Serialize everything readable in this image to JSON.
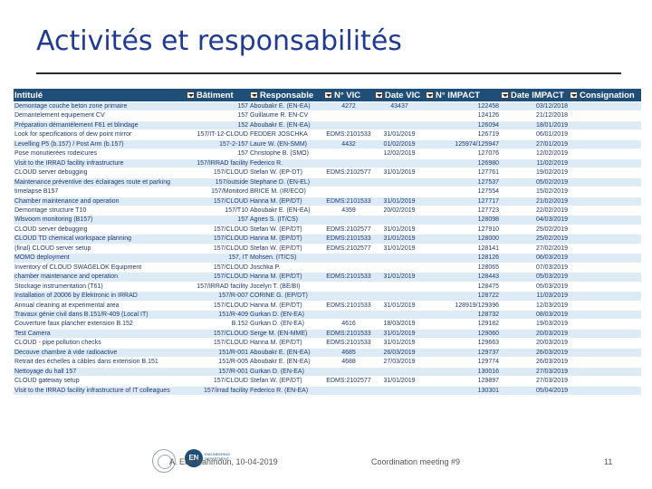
{
  "title": "Activités et responsabilités",
  "columns": [
    "Intitulé",
    "Bâtiment",
    "Responsable",
    "N° VIC",
    "Date VIC",
    "N° IMPACT",
    "Date IMPACT",
    "Consignation"
  ],
  "rows": [
    [
      "Demontage couche beton zone primaire",
      "157",
      "Aboubakr E. (EN-EA)",
      "4272",
      "43437",
      "122458",
      "03/12/2018",
      ""
    ],
    [
      "Demantelement equipement CV",
      "157",
      "Guillaume R. EN-CV",
      "",
      "",
      "124126",
      "21/12/2018",
      ""
    ],
    [
      "Préparation démantèlement F61 et blindage",
      "152",
      "Aboubakr E. (EN-EA)",
      "",
      "",
      "126094",
      "18/01/2019",
      ""
    ],
    [
      "Look for specifications of dew point mirror",
      "157/IT-12-CLOUD",
      "FEDDER JOSCHKA",
      "EDMS:2101533",
      "31/01/2019",
      "126719",
      "06/01/2019",
      ""
    ],
    [
      "Levelling P5 (b.157) / Post Arm (b.157)",
      "157-2-157",
      "Laure W. (EN-SMM)",
      "4432",
      "01/02/2019",
      "125974/125947",
      "27/01/2019",
      ""
    ],
    [
      "Pose monutierées rodeicures",
      "157",
      "Christophe B. (SMO)",
      "",
      "12/02/2019",
      "127076",
      "12/02/2019",
      ""
    ],
    [
      "Visit to the IRRAD facility infrastructure",
      "157/IRRAD facility",
      "Federico R.",
      "",
      "",
      "126980",
      "11/02/2019",
      ""
    ],
    [
      "CLOUD server debugging",
      "157/CLOUD",
      "Stefan W. (EP-DT)",
      "EDMS:2102577",
      "31/01/2019",
      "127761",
      "19/02/2019",
      ""
    ],
    [
      "Maintenance préventive des éclairages route et parking",
      "157/outside",
      "Stephane D. (EN-EL)",
      "",
      "",
      "127537",
      "05/02/2019",
      ""
    ],
    [
      "timelapse B157",
      "157/Monitord",
      "BRICE M. (IR/ECO)",
      "",
      "",
      "127554",
      "15/02/2019",
      ""
    ],
    [
      "Chamber maintenance and operation",
      "157/CLOUD",
      "Hanna M. (EP/DT)",
      "EDMS:2101533",
      "31/01/2019",
      "127717",
      "21/02/2019",
      ""
    ],
    [
      "Demontage structure T10",
      "157/T10",
      "Aboubakr E. (EN-EA)",
      "4359",
      "20/02/2019",
      "127723",
      "22/02/2019",
      ""
    ],
    [
      "Wlsvoom monitoring (B157)",
      "157",
      "Agnes S. (IT/CS)",
      "",
      "",
      "128098",
      "04/03/2019",
      ""
    ],
    [
      "CLOUD server debugging",
      "157/CLOUD",
      "Stefan W. (EP/DT)",
      "EDMS:2102577",
      "31/01/2019",
      "127910",
      "25/02/2019",
      ""
    ],
    [
      "CLOUD TD chemical workspace planning",
      "157/CLOUD",
      "Hanna M. (EP/DT)",
      "EDMS:2101533",
      "31/01/2019",
      "128000",
      "25/02/2019",
      ""
    ],
    [
      "(final) CLOUD server setup",
      "157/CLOUD",
      "Stefan W. (EP/DT)",
      "EDMS:2102577",
      "31/01/2019",
      "128141",
      "27/02/2019",
      ""
    ],
    [
      "MOMO deployment",
      "157, IT",
      "Mohsen. (IT/CS)",
      "",
      "",
      "128126",
      "06/03/2019",
      ""
    ],
    [
      "Inventory of CLOUD SWAGELOK Equipment",
      "157/CLOUD",
      "Joschka P.",
      "",
      "",
      "128065",
      "07/03/2019",
      ""
    ],
    [
      "chamber maintenance and operation",
      "157/CLOUD",
      "Hanna M. (EP/DT)",
      "EDMS:2101533",
      "31/01/2019",
      "128443",
      "05/03/2019",
      ""
    ],
    [
      "Stockage instrumentation (T61)",
      "157/IRRAD facility",
      "Jocelyn T. (BE/BI)",
      "",
      "",
      "128475",
      "05/03/2019",
      ""
    ],
    [
      "Installation of 20006 by Elektronic in IRRAD",
      "157/R-007",
      "CORINE G. (EP/DT)",
      "",
      "",
      "128722",
      "11/03/2019",
      ""
    ],
    [
      "Annual cleaning at experimental area",
      "157/CLOUD",
      "Hanna M. (EP/DT)",
      "EDMS:2101533",
      "31/01/2019",
      "128919/129396",
      "12/03/2019",
      ""
    ],
    [
      "Travaux génie civil dans B.151/R-409 (Local IT)",
      "151/R-409",
      "Gurkan D. (EN-EA)",
      "",
      "",
      "128732",
      "08/03/2019",
      ""
    ],
    [
      "Couverture faux plancher extension B.152",
      "B.152",
      "Gurkan D. (EN-EA)",
      "4616",
      "18/03/2019",
      "129182",
      "19/03/2019",
      ""
    ],
    [
      "Test Camera",
      "157/CLOUD",
      "Serge M. (EN-MME)",
      "EDMS:2101533",
      "31/01/2019",
      "129060",
      "20/03/2019",
      ""
    ],
    [
      "CLOUD - pipe pollution checks",
      "157/CLOUD",
      "Hanna M. (EP/DT)",
      "EDMS:2101533",
      "31/01/2019",
      "129663",
      "20/03/2019",
      ""
    ],
    [
      "Decouve chambre à vide radioactive",
      "151/R-001",
      "Aboubakr E. (EN-EA)",
      "4685",
      "26/03/2019",
      "129737",
      "26/03/2019",
      ""
    ],
    [
      "Retrait des échelles à câbles dans extension B.151",
      "151/R-005",
      "Aboubakr E. (EN-EA)",
      "4688",
      "27/03/2019",
      "129774",
      "26/03/2019",
      ""
    ],
    [
      "Nettoyage du hall 157",
      "157/R-001",
      "Gurkan D. (EN-EA)",
      "",
      "",
      "130016",
      "27/03/2019",
      ""
    ],
    [
      "CLOUD gateway setup",
      "157/CLOUD",
      "Stefan W. (EP/DT)",
      "EDMS:2102577",
      "31/01/2019",
      "129897",
      "27/03/2019",
      ""
    ],
    [
      "Visit to the IRRAD facility infrastructure of IT colleagues",
      "157/irrad facility",
      "Federico R. (EN-EA)",
      "",
      "",
      "130301",
      "05/04/2019",
      ""
    ]
  ],
  "footer": {
    "author": "A. Ebn Rahmoun, 10-04-2019",
    "meeting": "Coordination meeting #9",
    "page": "11",
    "en_logo": "EN",
    "en_logo_text": "ENGINEERING DEPARTMENT"
  }
}
